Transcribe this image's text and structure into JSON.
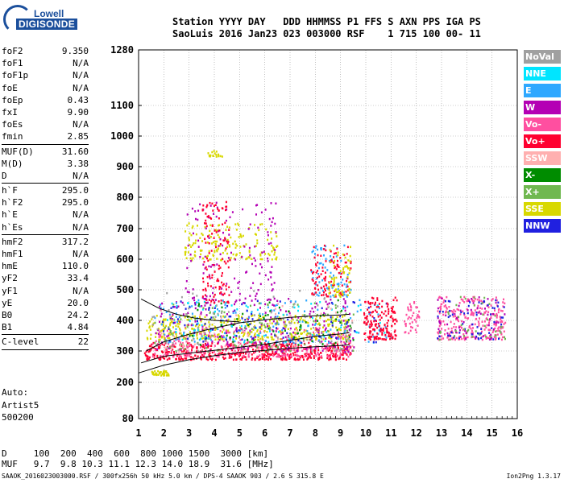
{
  "logo": {
    "line1": "Lowell",
    "line2": "DIGISONDE"
  },
  "header": {
    "labels": [
      "Station",
      "YYYY",
      "DAY",
      "DDD",
      "HHMMSS",
      "P1",
      "FFS",
      "S",
      "AXN",
      "PPS",
      "IGA",
      "PS"
    ],
    "values": [
      "SaoLuis",
      "2016",
      "Jan23",
      "023",
      "003000",
      "RSF",
      "",
      "1",
      "715",
      "100",
      "00-",
      "11"
    ]
  },
  "params": [
    {
      "key": "foF2",
      "value": "9.350"
    },
    {
      "key": "foF1",
      "value": "N/A"
    },
    {
      "key": "foF1p",
      "value": "N/A"
    },
    {
      "key": "foE",
      "value": "N/A"
    },
    {
      "key": "foEp",
      "value": "0.43"
    },
    {
      "key": "fxI",
      "value": "9.90"
    },
    {
      "key": "foEs",
      "value": "N/A"
    },
    {
      "key": "fmin",
      "value": "2.85",
      "sep": true
    },
    {
      "key": "MUF(D)",
      "value": "31.60"
    },
    {
      "key": "M(D)",
      "value": "3.38"
    },
    {
      "key": "D",
      "value": "N/A",
      "sep": true
    },
    {
      "key": "h`F",
      "value": "295.0"
    },
    {
      "key": "h`F2",
      "value": "295.0"
    },
    {
      "key": "h`E",
      "value": "N/A"
    },
    {
      "key": "h`Es",
      "value": "N/A",
      "sep": true
    },
    {
      "key": "hmF2",
      "value": "317.2"
    },
    {
      "key": "hmF1",
      "value": "N/A"
    },
    {
      "key": "hmE",
      "value": "110.0"
    },
    {
      "key": "yF2",
      "value": "33.4"
    },
    {
      "key": "yF1",
      "value": "N/A"
    },
    {
      "key": "yE",
      "value": "20.0"
    },
    {
      "key": "B0",
      "value": "24.2"
    },
    {
      "key": "B1",
      "value": "4.84",
      "sep": true
    },
    {
      "key": "C-level",
      "value": "22",
      "sep": true
    }
  ],
  "auto": {
    "line1": "Auto:",
    "line2": "Artist5",
    "line3": "500200"
  },
  "legend": [
    {
      "label": "NoVal",
      "color": "#a0a0a0"
    },
    {
      "label": "NNE",
      "color": "#00e5ff"
    },
    {
      "label": "E",
      "color": "#2ea8ff"
    },
    {
      "label": "W",
      "color": "#b400b4"
    },
    {
      "label": "Vo-",
      "color": "#ff4fa0"
    },
    {
      "label": "Vo+",
      "color": "#ff0030"
    },
    {
      "label": "SSW",
      "color": "#ffb0b0"
    },
    {
      "label": "X-",
      "color": "#008c00"
    },
    {
      "label": "X+",
      "color": "#70b850"
    },
    {
      "label": "SSE",
      "color": "#d8d800"
    },
    {
      "label": "NNW",
      "color": "#2020e0"
    }
  ],
  "muf_table": {
    "d_label": "D",
    "d_values": [
      "100",
      "200",
      "400",
      "600",
      "800",
      "1000",
      "1500",
      "3000"
    ],
    "d_unit": "[km]",
    "muf_label": "MUF",
    "muf_values": [
      "9.7",
      "9.8",
      "10.3",
      "11.1",
      "12.3",
      "14.0",
      "18.9",
      "31.6"
    ],
    "muf_unit": "[MHz]"
  },
  "footer": {
    "left": "SAAOK_2016023003000.RSF / 300fx256h 50 kHz 5.0 km / DPS-4 SAAOK 903 / 2.6 S 315.8 E",
    "right": "Ion2Png 1.3.17"
  },
  "chart_data": {
    "type": "scatter",
    "title": "",
    "xlabel": "",
    "ylabel": "",
    "xlim": [
      1,
      16
    ],
    "ylim": [
      80,
      1280
    ],
    "x_ticks": [
      1,
      2,
      3,
      4,
      5,
      6,
      7,
      8,
      9,
      10,
      11,
      12,
      13,
      14,
      15,
      16
    ],
    "y_ticks": [
      80,
      200,
      300,
      400,
      500,
      600,
      700,
      800,
      900,
      1000,
      1100,
      1280
    ],
    "grid": true,
    "y_scale": "nonlinear ionogram height axis",
    "legend_placement": "right",
    "echo_clusters": [
      {
        "series": "Vo+",
        "color": "#ff0030",
        "x_range": [
          1.2,
          9.4
        ],
        "y_range": [
          275,
          330
        ],
        "count": 520
      },
      {
        "series": "Vo-",
        "color": "#ff4fa0",
        "x_range": [
          1.5,
          9.4
        ],
        "y_range": [
          285,
          380
        ],
        "count": 320
      },
      {
        "series": "SSE",
        "color": "#d8d800",
        "x_range": [
          1.3,
          9.4
        ],
        "y_range": [
          340,
          420
        ],
        "count": 360
      },
      {
        "series": "W",
        "color": "#b400b4",
        "x_range": [
          1.6,
          9.5
        ],
        "y_range": [
          300,
          480
        ],
        "count": 220
      },
      {
        "series": "E",
        "color": "#2ea8ff",
        "x_range": [
          1.6,
          11.0
        ],
        "y_range": [
          330,
          470
        ],
        "count": 140
      },
      {
        "series": "NNE",
        "color": "#00e5ff",
        "x_range": [
          1.8,
          11.0
        ],
        "y_range": [
          330,
          470
        ],
        "count": 80
      },
      {
        "series": "X+",
        "color": "#70b850",
        "x_range": [
          1.6,
          9.5
        ],
        "y_range": [
          300,
          460
        ],
        "count": 110
      },
      {
        "series": "X-",
        "color": "#008c00",
        "x_range": [
          2.5,
          9.5
        ],
        "y_range": [
          320,
          470
        ],
        "count": 70
      },
      {
        "series": "NNW",
        "color": "#2020e0",
        "x_range": [
          1.8,
          11.0
        ],
        "y_range": [
          330,
          470
        ],
        "count": 90
      },
      {
        "series": "SSW",
        "color": "#ffb0b0",
        "x_range": [
          1.8,
          9.5
        ],
        "y_range": [
          300,
          460
        ],
        "count": 70
      },
      {
        "series": "NoVal",
        "color": "#a0a0a0",
        "x_range": [
          1.5,
          9.5
        ],
        "y_range": [
          300,
          500
        ],
        "count": 90
      },
      {
        "series": "Vo+",
        "color": "#ff0030",
        "x_range": [
          9.9,
          11.2
        ],
        "y_range": [
          340,
          480
        ],
        "count": 160
      },
      {
        "series": "Vo-",
        "color": "#ff4fa0",
        "x_range": [
          11.5,
          12.1
        ],
        "y_range": [
          360,
          470
        ],
        "count": 40
      },
      {
        "series": "Vo-",
        "color": "#ff4fa0",
        "x_range": [
          12.8,
          15.5
        ],
        "y_range": [
          340,
          480
        ],
        "count": 260
      },
      {
        "series": "W",
        "color": "#b400b4",
        "x_range": [
          12.8,
          15.5
        ],
        "y_range": [
          340,
          480
        ],
        "count": 60
      },
      {
        "series": "NNW",
        "color": "#2020e0",
        "x_range": [
          12.8,
          15.5
        ],
        "y_range": [
          340,
          480
        ],
        "count": 60
      },
      {
        "series": "X+",
        "color": "#70b850",
        "x_range": [
          12.8,
          15.5
        ],
        "y_range": [
          340,
          480
        ],
        "count": 40
      },
      {
        "series": "SSE",
        "color": "#d8d800",
        "x_range": [
          2.8,
          6.5
        ],
        "y_range": [
          600,
          720
        ],
        "count": 160
      },
      {
        "series": "W",
        "color": "#b400b4",
        "x_range": [
          2.8,
          6.5
        ],
        "y_range": [
          460,
          790
        ],
        "count": 140
      },
      {
        "series": "Vo+",
        "color": "#ff0030",
        "x_range": [
          3.5,
          4.6
        ],
        "y_range": [
          460,
          790
        ],
        "count": 120
      },
      {
        "series": "E",
        "color": "#2ea8ff",
        "x_range": [
          7.8,
          9.4
        ],
        "y_range": [
          480,
          650
        ],
        "count": 80
      },
      {
        "series": "Vo+",
        "color": "#ff0030",
        "x_range": [
          7.8,
          9.4
        ],
        "y_range": [
          480,
          650
        ],
        "count": 100
      },
      {
        "series": "SSE",
        "color": "#d8d800",
        "x_range": [
          8.5,
          9.4
        ],
        "y_range": [
          480,
          650
        ],
        "count": 60
      },
      {
        "series": "SSE",
        "color": "#d8d800",
        "x_range": [
          1.5,
          2.2
        ],
        "y_range": [
          225,
          240
        ],
        "count": 40
      },
      {
        "series": "SSE",
        "color": "#d8d800",
        "x_range": [
          3.7,
          4.3
        ],
        "y_range": [
          935,
          955
        ],
        "count": 20
      }
    ],
    "lines": [
      {
        "name": "",
        "x": [
          1,
          2,
          3,
          4,
          5,
          6,
          7,
          8,
          9,
          9.35
        ],
        "y": [
          230,
          255,
          272,
          285,
          295,
          302,
          309,
          314,
          318,
          320
        ]
      },
      {
        "name": "",
        "x": [
          1.1,
          2,
          3,
          4,
          5,
          6,
          7,
          8,
          9,
          9.35
        ],
        "y": [
          262,
          283,
          293,
          302,
          312,
          322,
          335,
          348,
          356,
          360
        ]
      },
      {
        "name": "",
        "x": [
          1.1,
          1.8,
          2.5,
          3.2,
          4,
          5
        ],
        "y": [
          470,
          440,
          420,
          408,
          400,
          395
        ]
      },
      {
        "name": "",
        "x": [
          1.3,
          2,
          3,
          4,
          5,
          6,
          7,
          8,
          9,
          9.35
        ],
        "y": [
          300,
          330,
          355,
          375,
          392,
          402,
          410,
          415,
          418,
          420
        ]
      }
    ]
  }
}
